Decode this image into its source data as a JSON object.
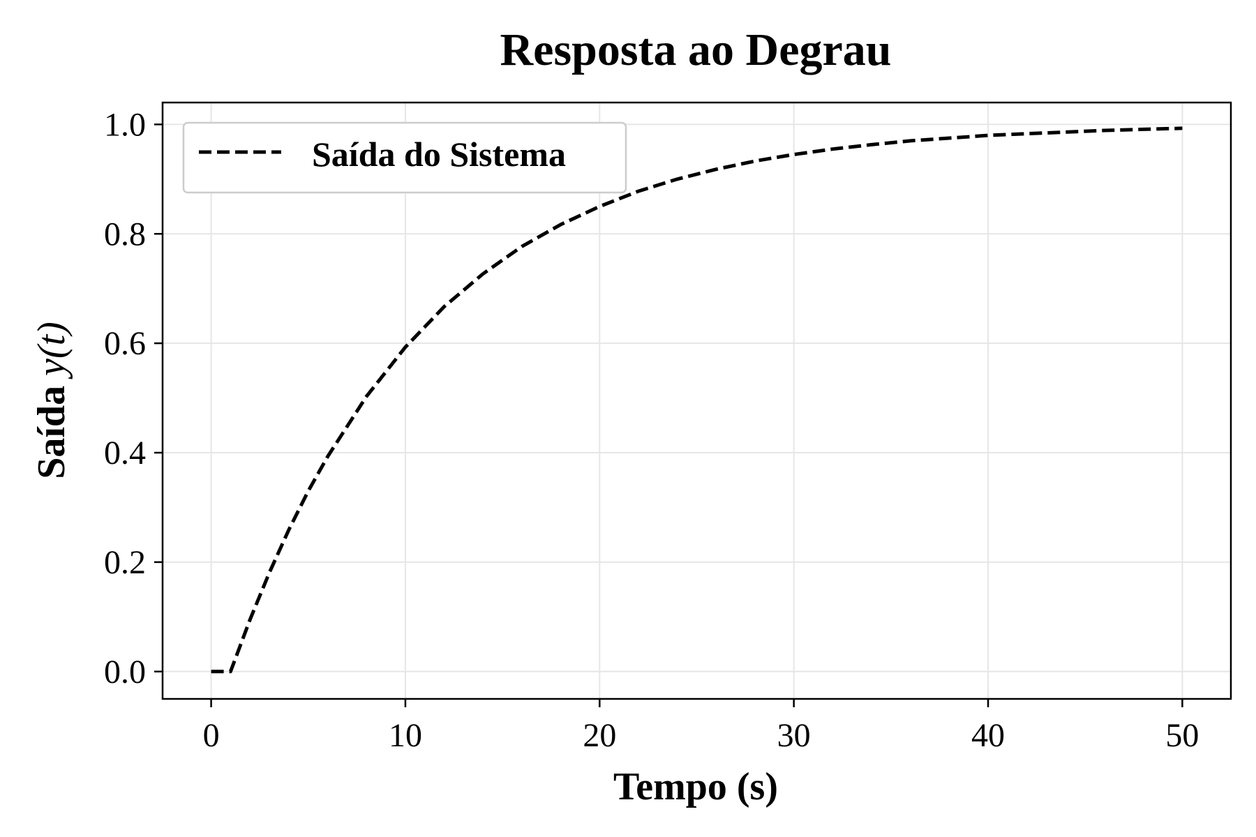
{
  "chart_data": {
    "type": "line",
    "title": "Resposta ao Degrau",
    "xlabel": "Tempo (s)",
    "ylabel_text": "Saída ",
    "ylabel_math": "y(t)",
    "xlim": [
      -2.5,
      52.5
    ],
    "ylim": [
      -0.05,
      1.04
    ],
    "xticks": [
      0,
      10,
      20,
      30,
      40,
      50
    ],
    "xtick_labels": [
      "0",
      "10",
      "20",
      "30",
      "40",
      "50"
    ],
    "yticks": [
      0.0,
      0.2,
      0.4,
      0.6,
      0.8,
      1.0
    ],
    "ytick_labels": [
      "0.0",
      "0.2",
      "0.4",
      "0.6",
      "0.8",
      "1.0"
    ],
    "grid": true,
    "legend_position": "top-left",
    "series": [
      {
        "name": "Saída do Sistema",
        "color": "#000000",
        "line_style": "dashed",
        "x": [
          0,
          1,
          2,
          3,
          4,
          5,
          6,
          8,
          10,
          12,
          14,
          16,
          18,
          20,
          22,
          24,
          26,
          28,
          30,
          32,
          34,
          36,
          38,
          40,
          42,
          44,
          46,
          48,
          50
        ],
        "y": [
          0.0,
          0.0,
          0.095,
          0.181,
          0.259,
          0.33,
          0.393,
          0.503,
          0.593,
          0.667,
          0.727,
          0.777,
          0.817,
          0.85,
          0.878,
          0.9,
          0.918,
          0.933,
          0.945,
          0.955,
          0.963,
          0.97,
          0.975,
          0.98,
          0.983,
          0.986,
          0.989,
          0.991,
          0.993
        ]
      }
    ]
  }
}
